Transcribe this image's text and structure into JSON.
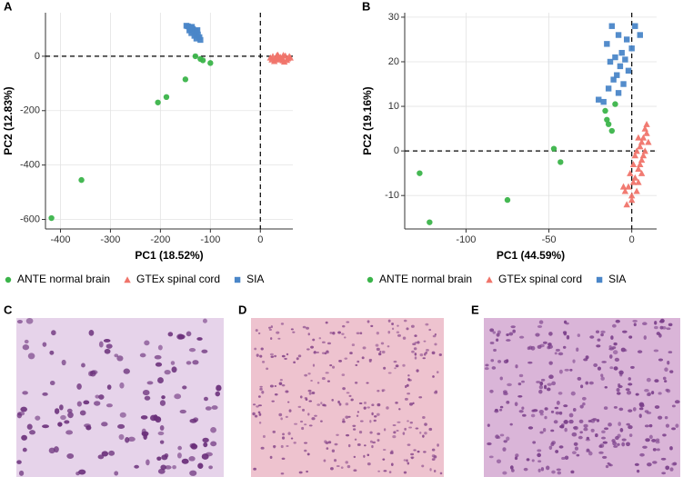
{
  "chart_data": [
    {
      "type": "scatter",
      "panel": "A",
      "xlabel": "PC1 (18.52%)",
      "ylabel": "PC2 (12.83%)",
      "xlim": [
        -430,
        65
      ],
      "ylim": [
        -635,
        160
      ],
      "xticks": [
        -400,
        -300,
        -200,
        -100,
        0
      ],
      "yticks": [
        -600,
        -400,
        -200,
        0
      ],
      "grid": true,
      "vline": 0,
      "hline": 0,
      "series": [
        {
          "name": "ANTE normal brain",
          "color": "#3bb44a",
          "marker": "circle",
          "x": [
            -418,
            -358,
            -188,
            -205,
            -150,
            -120,
            -115,
            -100,
            -130
          ],
          "values": [
            -595,
            -455,
            -150,
            -170,
            -85,
            -10,
            -15,
            -25,
            0
          ]
        },
        {
          "name": "GTEx spinal cord",
          "color": "#f0746a",
          "marker": "triangle",
          "x": [
            20,
            25,
            30,
            35,
            40,
            45,
            50,
            55,
            28,
            38,
            48,
            58,
            33,
            43,
            53,
            23,
            60,
            36,
            46,
            31
          ],
          "values": [
            -5,
            0,
            -10,
            5,
            -3,
            -15,
            2,
            -8,
            -18,
            -12,
            -20,
            0,
            3,
            -7,
            -14,
            -12,
            -5,
            -1,
            4,
            -6
          ]
        },
        {
          "name": "SIA",
          "color": "#4a86c8",
          "marker": "square",
          "x": [
            -145,
            -140,
            -135,
            -142,
            -130,
            -128,
            -138,
            -125,
            -132,
            -122,
            -128,
            -120,
            -148,
            -137,
            -126
          ],
          "values": [
            110,
            105,
            100,
            95,
            92,
            88,
            85,
            80,
            75,
            70,
            65,
            60,
            112,
            108,
            96
          ]
        }
      ]
    },
    {
      "type": "scatter",
      "panel": "B",
      "xlabel": "PC1 (44.59%)",
      "ylabel": "PC2 (19.16%)",
      "xlim": [
        -137,
        15
      ],
      "ylim": [
        -17.5,
        31
      ],
      "xticks": [
        -100,
        -50,
        0
      ],
      "yticks": [
        -10,
        0,
        10,
        20,
        30
      ],
      "grid": true,
      "vline": 0,
      "hline": 0,
      "series": [
        {
          "name": "ANTE normal brain",
          "color": "#3bb44a",
          "marker": "circle",
          "x": [
            -128,
            -122,
            -75,
            -47,
            -43,
            -16,
            -14,
            -12,
            -10,
            -15
          ],
          "values": [
            -5,
            -16,
            -11,
            0.5,
            -2.5,
            9,
            6,
            4.5,
            10.5,
            7
          ]
        },
        {
          "name": "GTEx spinal cord",
          "color": "#f0746a",
          "marker": "triangle",
          "x": [
            -2,
            0,
            2,
            4,
            -4,
            6,
            1,
            3,
            5,
            7,
            8,
            9,
            -1,
            2,
            4,
            6,
            8,
            10,
            -3,
            0,
            3,
            5,
            7,
            9,
            1,
            -5,
            6,
            4
          ],
          "values": [
            -8,
            -10,
            -6,
            -4,
            -9,
            -2,
            -3,
            0,
            1,
            3,
            5,
            6,
            -5,
            -1,
            -7,
            -5,
            0,
            2,
            -12,
            -11,
            -9,
            -3,
            -1,
            4,
            -7,
            -8,
            2,
            3
          ]
        },
        {
          "name": "SIA",
          "color": "#4a86c8",
          "marker": "square",
          "x": [
            -12,
            2,
            -8,
            5,
            -3,
            -15,
            0,
            -6,
            -10,
            -4,
            -13,
            -7,
            -2,
            -9,
            -11,
            -5,
            -14,
            -8,
            -20,
            -17
          ],
          "values": [
            28,
            28,
            26,
            26,
            25,
            24,
            23,
            22,
            21,
            20.5,
            20,
            19,
            18,
            17,
            16,
            15,
            14,
            13,
            11.5,
            11
          ]
        }
      ]
    }
  ],
  "images": [
    {
      "label": "C"
    },
    {
      "label": "D"
    },
    {
      "label": "E"
    }
  ]
}
